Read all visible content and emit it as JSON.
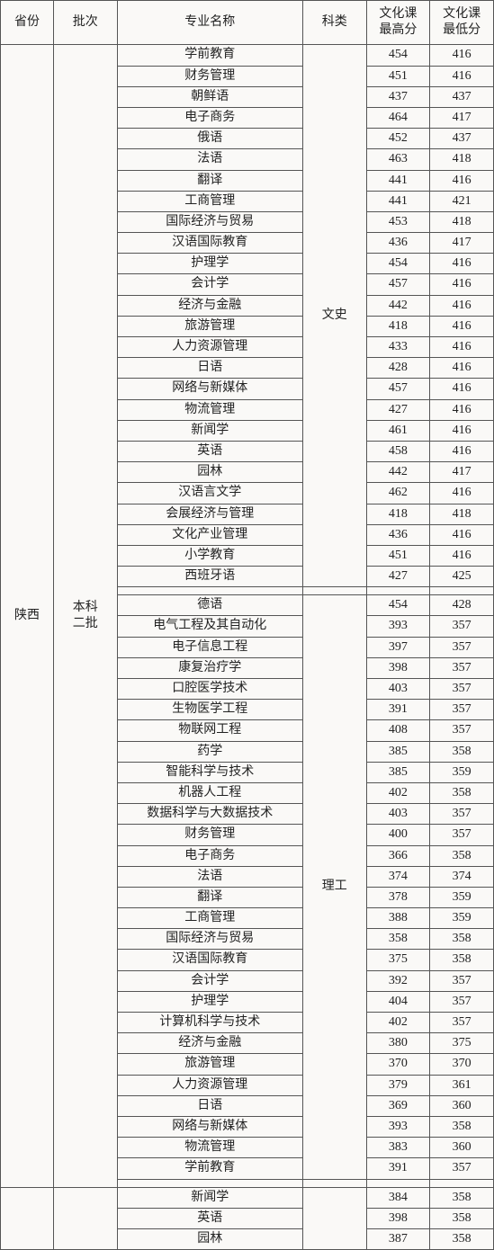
{
  "colors": {
    "background": "#faf9f7",
    "border": "#555555",
    "text": "#222222"
  },
  "font": {
    "family": "SimSun",
    "size_pt": 10
  },
  "headers": {
    "province": "省份",
    "batch": "批次",
    "major": "专业名称",
    "subject": "科类",
    "max": "文化课\n最高分",
    "min": "文化课\n最低分"
  },
  "province": "陕西",
  "batch": "本科\n二批",
  "subjects": {
    "wenshi": "文史",
    "ligong": "理工"
  },
  "block1": [
    {
      "major": "学前教育",
      "max": 454,
      "min": 416
    },
    {
      "major": "财务管理",
      "max": 451,
      "min": 416
    },
    {
      "major": "朝鲜语",
      "max": 437,
      "min": 437
    },
    {
      "major": "电子商务",
      "max": 464,
      "min": 417
    },
    {
      "major": "俄语",
      "max": 452,
      "min": 437
    },
    {
      "major": "法语",
      "max": 463,
      "min": 418
    },
    {
      "major": "翻译",
      "max": 441,
      "min": 416
    },
    {
      "major": "工商管理",
      "max": 441,
      "min": 421
    },
    {
      "major": "国际经济与贸易",
      "max": 453,
      "min": 418
    },
    {
      "major": "汉语国际教育",
      "max": 436,
      "min": 417
    },
    {
      "major": "护理学",
      "max": 454,
      "min": 416
    },
    {
      "major": "会计学",
      "max": 457,
      "min": 416
    },
    {
      "major": "经济与金融",
      "max": 442,
      "min": 416
    },
    {
      "major": "旅游管理",
      "max": 418,
      "min": 416
    },
    {
      "major": "人力资源管理",
      "max": 433,
      "min": 416
    },
    {
      "major": "日语",
      "max": 428,
      "min": 416
    },
    {
      "major": "网络与新媒体",
      "max": 457,
      "min": 416
    },
    {
      "major": "物流管理",
      "max": 427,
      "min": 416
    },
    {
      "major": "新闻学",
      "max": 461,
      "min": 416
    },
    {
      "major": "英语",
      "max": 458,
      "min": 416
    },
    {
      "major": "园林",
      "max": 442,
      "min": 417
    },
    {
      "major": "汉语言文学",
      "max": 462,
      "min": 416
    },
    {
      "major": "会展经济与管理",
      "max": 418,
      "min": 418
    },
    {
      "major": "文化产业管理",
      "max": 436,
      "min": 416
    },
    {
      "major": "小学教育",
      "max": 451,
      "min": 416
    },
    {
      "major": "西班牙语",
      "max": 427,
      "min": 425
    }
  ],
  "block2": [
    {
      "major": "德语",
      "max": 454,
      "min": 428
    },
    {
      "major": "电气工程及其自动化",
      "max": 393,
      "min": 357
    },
    {
      "major": "电子信息工程",
      "max": 397,
      "min": 357
    },
    {
      "major": "康复治疗学",
      "max": 398,
      "min": 357
    },
    {
      "major": "口腔医学技术",
      "max": 403,
      "min": 357
    },
    {
      "major": "生物医学工程",
      "max": 391,
      "min": 357
    },
    {
      "major": "物联网工程",
      "max": 408,
      "min": 357
    },
    {
      "major": "药学",
      "max": 385,
      "min": 358
    },
    {
      "major": "智能科学与技术",
      "max": 385,
      "min": 359
    },
    {
      "major": "机器人工程",
      "max": 402,
      "min": 358
    },
    {
      "major": "数据科学与大数据技术",
      "max": 403,
      "min": 357
    },
    {
      "major": "财务管理",
      "max": 400,
      "min": 357
    },
    {
      "major": "电子商务",
      "max": 366,
      "min": 358
    },
    {
      "major": "法语",
      "max": 374,
      "min": 374
    },
    {
      "major": "翻译",
      "max": 378,
      "min": 359
    },
    {
      "major": "工商管理",
      "max": 388,
      "min": 359
    },
    {
      "major": "国际经济与贸易",
      "max": 358,
      "min": 358
    },
    {
      "major": "汉语国际教育",
      "max": 375,
      "min": 358
    },
    {
      "major": "会计学",
      "max": 392,
      "min": 357
    },
    {
      "major": "护理学",
      "max": 404,
      "min": 357
    },
    {
      "major": "计算机科学与技术",
      "max": 402,
      "min": 357
    },
    {
      "major": "经济与金融",
      "max": 380,
      "min": 375
    },
    {
      "major": "旅游管理",
      "max": 370,
      "min": 370
    },
    {
      "major": "人力资源管理",
      "max": 379,
      "min": 361
    },
    {
      "major": "日语",
      "max": 369,
      "min": 360
    },
    {
      "major": "网络与新媒体",
      "max": 393,
      "min": 358
    },
    {
      "major": "物流管理",
      "max": 383,
      "min": 360
    },
    {
      "major": "学前教育",
      "max": 391,
      "min": 357
    }
  ],
  "block3": [
    {
      "major": "新闻学",
      "max": 384,
      "min": 358
    },
    {
      "major": "英语",
      "max": 398,
      "min": 358
    },
    {
      "major": "园林",
      "max": 387,
      "min": 358
    }
  ]
}
